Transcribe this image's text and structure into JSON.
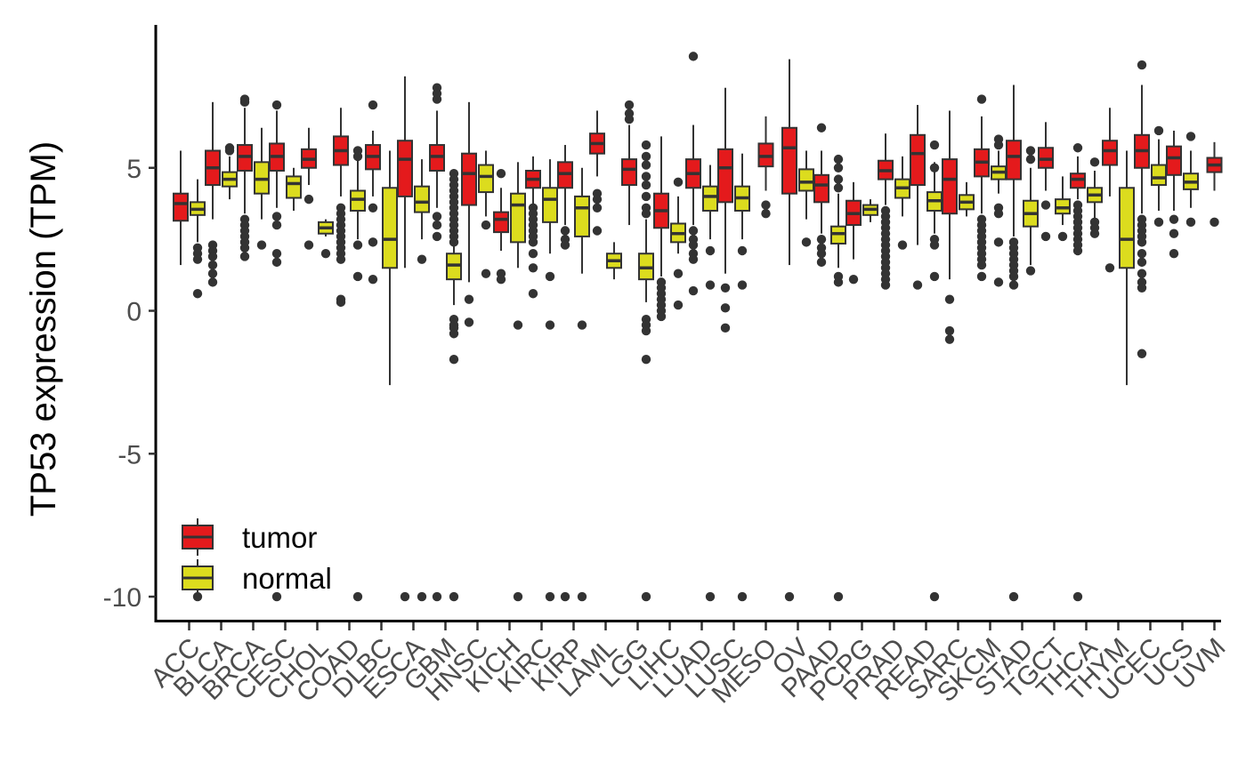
{
  "chart_data": {
    "type": "boxplot",
    "ylabel": "TP53 expression (TPM)",
    "xlabel": "",
    "ylim": [
      -10.9,
      10
    ],
    "yticks": [
      -10,
      -5,
      0,
      5
    ],
    "grid": false,
    "legend_position": "bottom-left",
    "groups": [
      {
        "name": "tumor",
        "color": "#e41a1c"
      },
      {
        "name": "normal",
        "color": "#dcdc1e"
      }
    ],
    "categories": [
      "ACC",
      "BLCA",
      "BRCA",
      "CESC",
      "CHOL",
      "COAD",
      "DLBC",
      "ESCA",
      "GBM",
      "HNSC",
      "KICH",
      "KIRC",
      "KIRP",
      "LAML",
      "LGG",
      "LIHC",
      "LUAD",
      "LUSC",
      "MESO",
      "OV",
      "PAAD",
      "PCPG",
      "PRAD",
      "READ",
      "SARC",
      "SKCM",
      "STAD",
      "TGCT",
      "THCA",
      "THYM",
      "UCEC",
      "UCS",
      "UVM"
    ],
    "boxes": [
      {
        "category": "ACC",
        "group": "tumor",
        "q1": 3.15,
        "median": 3.75,
        "q3": 4.1,
        "whisker_low": 1.6,
        "whisker_high": 5.6,
        "outliers": []
      },
      {
        "category": "ACC",
        "group": "normal",
        "q1": 3.35,
        "median": 3.55,
        "q3": 3.8,
        "whisker_low": 2.4,
        "whisker_high": 4.6,
        "outliers": [
          2.2,
          2.0,
          1.8,
          0.6,
          -10
        ]
      },
      {
        "category": "BLCA",
        "group": "tumor",
        "q1": 4.4,
        "median": 5.0,
        "q3": 5.6,
        "whisker_low": 3.2,
        "whisker_high": 7.3,
        "outliers": [
          2.3,
          2.1,
          1.9,
          1.6,
          1.3,
          1.0
        ]
      },
      {
        "category": "BLCA",
        "group": "normal",
        "q1": 4.35,
        "median": 4.6,
        "q3": 4.85,
        "whisker_low": 3.9,
        "whisker_high": 5.4,
        "outliers": [
          5.6,
          5.7
        ]
      },
      {
        "category": "BRCA",
        "group": "tumor",
        "q1": 4.9,
        "median": 5.4,
        "q3": 5.8,
        "whisker_low": 3.4,
        "whisker_high": 7.1,
        "outliers": [
          7.3,
          7.4,
          3.2,
          3.0,
          2.8,
          2.6,
          2.4,
          2.2,
          1.9
        ]
      },
      {
        "category": "BRCA",
        "group": "normal",
        "q1": 4.1,
        "median": 4.6,
        "q3": 5.2,
        "whisker_low": 3.2,
        "whisker_high": 6.4,
        "outliers": [
          2.3
        ]
      },
      {
        "category": "CESC",
        "group": "tumor",
        "q1": 4.9,
        "median": 5.4,
        "q3": 5.85,
        "whisker_low": 3.6,
        "whisker_high": 7.0,
        "outliers": [
          7.2,
          3.3,
          3.0,
          2.0,
          1.7,
          -10
        ]
      },
      {
        "category": "CESC",
        "group": "normal",
        "q1": 3.95,
        "median": 4.45,
        "q3": 4.7,
        "whisker_low": 3.5,
        "whisker_high": 5.0,
        "outliers": []
      },
      {
        "category": "CHOL",
        "group": "tumor",
        "q1": 5.0,
        "median": 5.3,
        "q3": 5.65,
        "whisker_low": 4.4,
        "whisker_high": 6.4,
        "outliers": [
          3.9,
          2.3
        ]
      },
      {
        "category": "CHOL",
        "group": "normal",
        "q1": 2.7,
        "median": 2.9,
        "q3": 3.1,
        "whisker_low": 2.6,
        "whisker_high": 3.2,
        "outliers": [
          2.0
        ]
      },
      {
        "category": "COAD",
        "group": "tumor",
        "q1": 5.1,
        "median": 5.6,
        "q3": 6.1,
        "whisker_low": 4.0,
        "whisker_high": 7.1,
        "outliers": [
          3.6,
          3.4,
          3.2,
          3.0,
          2.8,
          2.6,
          2.4,
          2.2,
          2.0,
          1.8,
          0.4,
          0.3
        ]
      },
      {
        "category": "COAD",
        "group": "normal",
        "q1": 3.5,
        "median": 3.9,
        "q3": 4.2,
        "whisker_low": 2.5,
        "whisker_high": 5.3,
        "outliers": [
          5.6,
          5.4,
          2.3,
          1.2,
          -10
        ]
      },
      {
        "category": "DLBC",
        "group": "tumor",
        "q1": 4.95,
        "median": 5.4,
        "q3": 5.8,
        "whisker_low": 4.0,
        "whisker_high": 6.3,
        "outliers": [
          7.2,
          3.6,
          2.4,
          1.1
        ]
      },
      {
        "category": "DLBC",
        "group": "normal",
        "q1": 1.5,
        "median": 2.5,
        "q3": 4.3,
        "whisker_low": -2.6,
        "whisker_high": 5.6,
        "outliers": []
      },
      {
        "category": "ESCA",
        "group": "tumor",
        "q1": 4.0,
        "median": 5.3,
        "q3": 5.95,
        "whisker_low": 1.5,
        "whisker_high": 8.2,
        "outliers": [
          -10
        ]
      },
      {
        "category": "ESCA",
        "group": "normal",
        "q1": 3.45,
        "median": 3.8,
        "q3": 4.35,
        "whisker_low": 2.5,
        "whisker_high": 5.3,
        "outliers": [
          1.8,
          -10
        ]
      },
      {
        "category": "GBM",
        "group": "tumor",
        "q1": 4.9,
        "median": 5.4,
        "q3": 5.8,
        "whisker_low": 3.6,
        "whisker_high": 7.0,
        "outliers": [
          7.4,
          7.6,
          7.8,
          3.3,
          3.0,
          2.6,
          -10
        ]
      },
      {
        "category": "GBM",
        "group": "normal",
        "q1": 1.1,
        "median": 1.6,
        "q3": 2.0,
        "whisker_low": 0.2,
        "whisker_high": 3.5,
        "outliers": [
          4.8,
          4.6,
          4.4,
          4.2,
          4.0,
          3.8,
          3.6,
          3.4,
          3.2,
          3.0,
          2.8,
          2.6,
          2.4,
          -0.3,
          -0.5,
          -0.6,
          -0.8,
          -1.7,
          -10
        ]
      },
      {
        "category": "HNSC",
        "group": "tumor",
        "q1": 3.7,
        "median": 4.8,
        "q3": 5.5,
        "whisker_low": 1.0,
        "whisker_high": 7.3,
        "outliers": [
          0.4,
          -0.4
        ]
      },
      {
        "category": "HNSC",
        "group": "normal",
        "q1": 4.15,
        "median": 4.7,
        "q3": 5.1,
        "whisker_low": 3.3,
        "whisker_high": 5.6,
        "outliers": [
          3.0,
          1.3
        ]
      },
      {
        "category": "KICH",
        "group": "tumor",
        "q1": 2.75,
        "median": 3.2,
        "q3": 3.45,
        "whisker_low": 2.1,
        "whisker_high": 4.3,
        "outliers": [
          4.8,
          1.3,
          1.1
        ]
      },
      {
        "category": "KICH",
        "group": "normal",
        "q1": 2.4,
        "median": 3.7,
        "q3": 4.1,
        "whisker_low": 1.5,
        "whisker_high": 5.2,
        "outliers": [
          -0.5,
          -10
        ]
      },
      {
        "category": "KIRC",
        "group": "tumor",
        "q1": 4.3,
        "median": 4.6,
        "q3": 4.9,
        "whisker_low": 3.7,
        "whisker_high": 5.4,
        "outliers": [
          3.6,
          3.4,
          3.2,
          3.0,
          2.8,
          2.6,
          2.4,
          2.0,
          1.5,
          0.6
        ]
      },
      {
        "category": "KIRC",
        "group": "normal",
        "q1": 3.1,
        "median": 3.9,
        "q3": 4.3,
        "whisker_low": 2.0,
        "whisker_high": 5.3,
        "outliers": [
          1.2,
          -0.5,
          -10
        ]
      },
      {
        "category": "KIRP",
        "group": "tumor",
        "q1": 4.3,
        "median": 4.8,
        "q3": 5.2,
        "whisker_low": 3.0,
        "whisker_high": 5.8,
        "outliers": [
          2.8,
          2.5,
          2.3,
          -10
        ]
      },
      {
        "category": "KIRP",
        "group": "normal",
        "q1": 2.6,
        "median": 3.6,
        "q3": 4.0,
        "whisker_low": 1.3,
        "whisker_high": 5.0,
        "outliers": [
          -0.5,
          -10
        ]
      },
      {
        "category": "LAML",
        "group": "tumor",
        "q1": 5.5,
        "median": 5.85,
        "q3": 6.2,
        "whisker_low": 4.7,
        "whisker_high": 7.0,
        "outliers": [
          4.1,
          3.9,
          3.6,
          2.8
        ]
      },
      {
        "category": "LAML",
        "group": "normal",
        "q1": 1.5,
        "median": 1.75,
        "q3": 2.0,
        "whisker_low": 1.1,
        "whisker_high": 2.4,
        "outliers": []
      },
      {
        "category": "LGG",
        "group": "tumor",
        "q1": 4.4,
        "median": 4.95,
        "q3": 5.3,
        "whisker_low": 3.0,
        "whisker_high": 6.5,
        "outliers": [
          7.2,
          6.9,
          6.7
        ]
      },
      {
        "category": "LGG",
        "group": "normal",
        "q1": 1.1,
        "median": 1.5,
        "q3": 2.0,
        "whisker_low": 0.3,
        "whisker_high": 3.2,
        "outliers": [
          5.8,
          5.4,
          5.1,
          4.7,
          4.4,
          4.0,
          3.6,
          3.4,
          -0.3,
          -0.5,
          -0.7,
          -1.7,
          -10
        ]
      },
      {
        "category": "LIHC",
        "group": "tumor",
        "q1": 2.9,
        "median": 3.5,
        "q3": 4.1,
        "whisker_low": 1.2,
        "whisker_high": 6.1,
        "outliers": [
          1.0,
          0.8,
          0.6,
          0.4,
          0.2,
          0.0,
          -0.2
        ]
      },
      {
        "category": "LIHC",
        "group": "normal",
        "q1": 2.4,
        "median": 2.7,
        "q3": 3.05,
        "whisker_low": 2.0,
        "whisker_high": 4.0,
        "outliers": [
          4.5,
          1.3,
          0.2
        ]
      },
      {
        "category": "LUAD",
        "group": "tumor",
        "q1": 4.3,
        "median": 4.8,
        "q3": 5.3,
        "whisker_low": 3.0,
        "whisker_high": 6.5,
        "outliers": [
          8.9,
          2.8,
          2.5,
          2.3,
          2.0,
          1.8,
          0.7
        ]
      },
      {
        "category": "LUAD",
        "group": "normal",
        "q1": 3.5,
        "median": 4.0,
        "q3": 4.35,
        "whisker_low": 2.5,
        "whisker_high": 5.1,
        "outliers": [
          2.1,
          0.9,
          -10
        ]
      },
      {
        "category": "LUSC",
        "group": "tumor",
        "q1": 3.8,
        "median": 5.0,
        "q3": 5.65,
        "whisker_low": 1.3,
        "whisker_high": 7.8,
        "outliers": [
          0.8,
          0.1,
          -0.6
        ]
      },
      {
        "category": "LUSC",
        "group": "normal",
        "q1": 3.5,
        "median": 3.95,
        "q3": 4.35,
        "whisker_low": 2.5,
        "whisker_high": 5.5,
        "outliers": [
          2.1,
          0.9,
          -10
        ]
      },
      {
        "category": "MESO",
        "group": "tumor",
        "q1": 5.05,
        "median": 5.4,
        "q3": 5.85,
        "whisker_low": 4.2,
        "whisker_high": 6.8,
        "outliers": [
          3.7,
          3.4
        ]
      },
      {
        "category": "OV",
        "group": "tumor",
        "q1": 4.1,
        "median": 5.7,
        "q3": 6.4,
        "whisker_low": 1.6,
        "whisker_high": 8.8,
        "outliers": [
          -10
        ]
      },
      {
        "category": "OV",
        "group": "normal",
        "q1": 4.2,
        "median": 4.5,
        "q3": 4.95,
        "whisker_low": 3.2,
        "whisker_high": 5.6,
        "outliers": [
          2.4
        ]
      },
      {
        "category": "PAAD",
        "group": "tumor",
        "q1": 3.8,
        "median": 4.4,
        "q3": 4.75,
        "whisker_low": 2.7,
        "whisker_high": 5.6,
        "outliers": [
          6.4,
          2.5,
          2.2,
          2.0,
          1.7
        ]
      },
      {
        "category": "PAAD",
        "group": "normal",
        "q1": 2.35,
        "median": 2.7,
        "q3": 2.95,
        "whisker_low": 1.5,
        "whisker_high": 4.1,
        "outliers": [
          5.3,
          5.0,
          4.6,
          4.3,
          1.2,
          1.0,
          -10
        ]
      },
      {
        "category": "PCPG",
        "group": "tumor",
        "q1": 3.0,
        "median": 3.4,
        "q3": 3.85,
        "whisker_low": 1.8,
        "whisker_high": 4.5,
        "outliers": [
          1.1
        ]
      },
      {
        "category": "PCPG",
        "group": "normal",
        "q1": 3.35,
        "median": 3.55,
        "q3": 3.7,
        "whisker_low": 3.1,
        "whisker_high": 3.9,
        "outliers": []
      },
      {
        "category": "PRAD",
        "group": "tumor",
        "q1": 4.6,
        "median": 4.9,
        "q3": 5.25,
        "whisker_low": 3.7,
        "whisker_high": 6.2,
        "outliers": [
          3.5,
          3.3,
          3.1,
          2.9,
          2.7,
          2.5,
          2.3,
          2.1,
          1.9,
          1.7,
          1.5,
          1.3,
          1.1,
          0.9
        ]
      },
      {
        "category": "PRAD",
        "group": "normal",
        "q1": 3.95,
        "median": 4.3,
        "q3": 4.6,
        "whisker_low": 3.3,
        "whisker_high": 5.4,
        "outliers": [
          2.3
        ]
      },
      {
        "category": "READ",
        "group": "tumor",
        "q1": 4.4,
        "median": 5.5,
        "q3": 6.15,
        "whisker_low": 2.3,
        "whisker_high": 7.2,
        "outliers": [
          0.9
        ]
      },
      {
        "category": "READ",
        "group": "normal",
        "q1": 3.5,
        "median": 3.85,
        "q3": 4.15,
        "whisker_low": 2.7,
        "whisker_high": 5.2,
        "outliers": [
          5.8,
          5.0,
          2.5,
          2.3,
          1.2,
          -10
        ]
      },
      {
        "category": "SARC",
        "group": "tumor",
        "q1": 3.4,
        "median": 4.6,
        "q3": 5.3,
        "whisker_low": 1.1,
        "whisker_high": 7.0,
        "outliers": [
          0.4,
          -0.7,
          -1.0
        ]
      },
      {
        "category": "SARC",
        "group": "normal",
        "q1": 3.55,
        "median": 3.8,
        "q3": 4.05,
        "whisker_low": 3.3,
        "whisker_high": 4.5,
        "outliers": []
      },
      {
        "category": "SKCM",
        "group": "tumor",
        "q1": 4.7,
        "median": 5.2,
        "q3": 5.65,
        "whisker_low": 3.4,
        "whisker_high": 6.8,
        "outliers": [
          7.4,
          3.2,
          3.0,
          2.8,
          2.6,
          2.4,
          2.2,
          2.0,
          1.8,
          1.6,
          1.2
        ]
      },
      {
        "category": "SKCM",
        "group": "normal",
        "q1": 4.6,
        "median": 4.85,
        "q3": 5.05,
        "whisker_low": 4.1,
        "whisker_high": 5.6,
        "outliers": [
          6.0,
          5.8,
          3.6,
          3.4,
          2.4,
          1.0
        ]
      },
      {
        "category": "STAD",
        "group": "tumor",
        "q1": 4.6,
        "median": 5.4,
        "q3": 5.95,
        "whisker_low": 2.6,
        "whisker_high": 7.9,
        "outliers": [
          2.4,
          2.2,
          2.0,
          1.8,
          1.6,
          1.4,
          1.2,
          0.9,
          -10
        ]
      },
      {
        "category": "STAD",
        "group": "normal",
        "q1": 2.95,
        "median": 3.4,
        "q3": 3.85,
        "whisker_low": 1.6,
        "whisker_high": 5.0,
        "outliers": [
          5.6,
          5.3,
          1.4
        ]
      },
      {
        "category": "TGCT",
        "group": "tumor",
        "q1": 5.0,
        "median": 5.3,
        "q3": 5.7,
        "whisker_low": 4.2,
        "whisker_high": 6.6,
        "outliers": [
          3.7,
          2.6
        ]
      },
      {
        "category": "TGCT",
        "group": "normal",
        "q1": 3.4,
        "median": 3.6,
        "q3": 3.9,
        "whisker_low": 3.0,
        "whisker_high": 4.7,
        "outliers": [
          2.6
        ]
      },
      {
        "category": "THCA",
        "group": "tumor",
        "q1": 4.3,
        "median": 4.6,
        "q3": 4.8,
        "whisker_low": 3.9,
        "whisker_high": 5.4,
        "outliers": [
          5.7,
          3.7,
          3.5,
          3.3,
          3.1,
          2.9,
          2.7,
          2.5,
          2.3,
          2.1,
          -10
        ]
      },
      {
        "category": "THCA",
        "group": "normal",
        "q1": 3.8,
        "median": 4.05,
        "q3": 4.3,
        "whisker_low": 3.2,
        "whisker_high": 4.9,
        "outliers": [
          5.2,
          3.1,
          2.9,
          2.7
        ]
      },
      {
        "category": "THYM",
        "group": "tumor",
        "q1": 5.1,
        "median": 5.6,
        "q3": 5.95,
        "whisker_low": 4.0,
        "whisker_high": 7.1,
        "outliers": [
          1.5
        ]
      },
      {
        "category": "THYM",
        "group": "normal",
        "q1": 1.5,
        "median": 2.5,
        "q3": 4.3,
        "whisker_low": -2.6,
        "whisker_high": 5.6,
        "outliers": []
      },
      {
        "category": "UCEC",
        "group": "tumor",
        "q1": 5.0,
        "median": 5.6,
        "q3": 6.15,
        "whisker_low": 3.4,
        "whisker_high": 7.9,
        "outliers": [
          8.6,
          3.2,
          3.0,
          2.8,
          2.6,
          2.4,
          2.0,
          1.7,
          1.3,
          1.0,
          0.8,
          -1.5
        ]
      },
      {
        "category": "UCEC",
        "group": "normal",
        "q1": 4.4,
        "median": 4.65,
        "q3": 5.1,
        "whisker_low": 3.5,
        "whisker_high": 6.0,
        "outliers": [
          6.3,
          3.1
        ]
      },
      {
        "category": "UCS",
        "group": "tumor",
        "q1": 4.75,
        "median": 5.35,
        "q3": 5.75,
        "whisker_low": 3.5,
        "whisker_high": 6.3,
        "outliers": [
          3.2,
          2.7,
          2.0
        ]
      },
      {
        "category": "UCS",
        "group": "normal",
        "q1": 4.25,
        "median": 4.5,
        "q3": 4.8,
        "whisker_low": 3.6,
        "whisker_high": 5.6,
        "outliers": [
          6.1,
          3.1
        ]
      },
      {
        "category": "UVM",
        "group": "tumor",
        "q1": 4.85,
        "median": 5.1,
        "q3": 5.35,
        "whisker_low": 4.2,
        "whisker_high": 5.9,
        "outliers": [
          3.1
        ]
      }
    ]
  }
}
